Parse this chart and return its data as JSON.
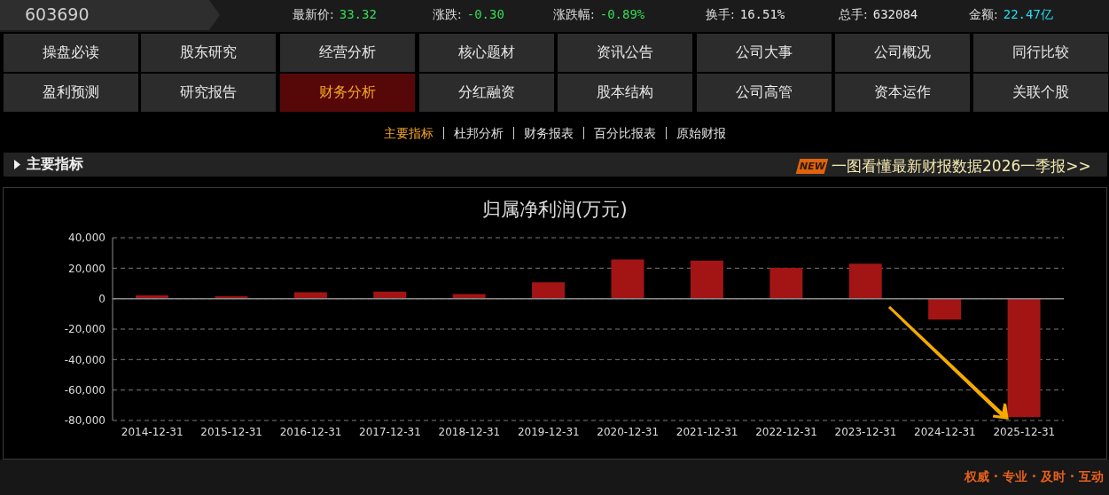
{
  "chart_data": {
    "type": "bar",
    "title": "归属净利润(万元)",
    "categories": [
      "2014-12-31",
      "2015-12-31",
      "2016-12-31",
      "2017-12-31",
      "2018-12-31",
      "2019-12-31",
      "2020-12-31",
      "2021-12-31",
      "2022-12-31",
      "2023-12-31",
      "2024-12-31",
      "2025-12-31"
    ],
    "values": [
      2200,
      1500,
      4200,
      4600,
      3000,
      10800,
      25800,
      25000,
      20200,
      23000,
      -13800,
      -77800
    ],
    "color": "#a31515",
    "ylim": [
      -80000,
      40000
    ],
    "yticks": [
      {
        "value": -80000,
        "label": "-80,000"
      },
      {
        "value": -60000,
        "label": "-60,000"
      },
      {
        "value": -40000,
        "label": "-40,000"
      },
      {
        "value": -20000,
        "label": "-20,000"
      },
      0,
      {
        "value": 20000,
        "label": "20,000"
      },
      {
        "value": 40000,
        "label": "40,000"
      }
    ],
    "grid": "y",
    "annotations": [
      "603690",
      "最新价:",
      "33.32",
      "涨跌:",
      "-0.30",
      "涨跌幅:",
      "-0.89%",
      "换手:",
      "16.51%",
      "总手:",
      "632084",
      "金额:",
      "22.47亿",
      "操盘必读",
      "股东研究",
      "经营分析",
      "核心题材",
      "资讯公告",
      "公司大事",
      "公司概况",
      "同行比较",
      "盈利预测",
      "研究报告",
      "财务分析",
      "分红融资",
      "股本结构",
      "公司高管",
      "资本运作",
      "关联个股",
      "主要指标",
      "杜邦分析",
      "财务报表",
      "百分比报表",
      "原始财报",
      "主要指标",
      "NEW",
      "一图看懂最新财报数据2026一季报>>",
      "权威 · 专业 · 及时 · 互动"
    ]
  }
}
